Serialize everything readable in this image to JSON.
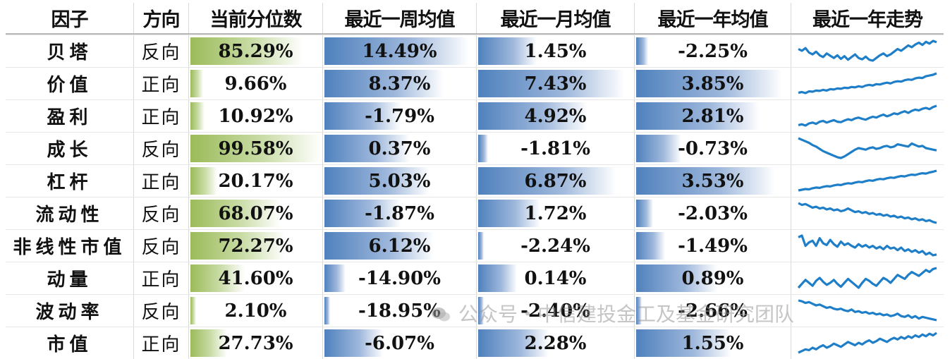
{
  "chart_data": {
    "type": "table",
    "headers": [
      "因子",
      "方向",
      "当前分位数",
      "最近一周均值",
      "最近一月均值",
      "最近一年均值",
      "最近一年走势"
    ],
    "rows": [
      {
        "factor": "贝塔",
        "direction": "反向",
        "percentile": "85.29%",
        "week": "14.49%",
        "month": "1.45%",
        "year": "-2.25%",
        "pct_value": 85.29,
        "week_value": 14.49,
        "month_value": 1.45,
        "year_value": -2.25,
        "trend": [
          70,
          66,
          72,
          62,
          58,
          64,
          56,
          52,
          60,
          55,
          50,
          56,
          48,
          54,
          46,
          52,
          58,
          50,
          47,
          53,
          46,
          44,
          50,
          56,
          60,
          54,
          58,
          64,
          70,
          66,
          72,
          78,
          74,
          80,
          84,
          79,
          86,
          82,
          88,
          85
        ]
      },
      {
        "factor": "价值",
        "direction": "正向",
        "percentile": "9.66%",
        "week": "8.37%",
        "month": "7.43%",
        "year": "3.85%",
        "pct_value": 9.66,
        "week_value": 8.37,
        "month_value": 7.43,
        "year_value": 3.85,
        "trend": [
          20,
          22,
          19,
          24,
          23,
          26,
          25,
          28,
          26,
          30,
          29,
          32,
          31,
          34,
          33,
          36,
          35,
          38,
          36,
          40,
          42,
          40,
          44,
          43,
          46,
          48,
          46,
          50,
          52,
          51,
          55,
          57,
          56,
          60,
          62,
          61,
          66,
          68,
          70,
          74
        ]
      },
      {
        "factor": "盈利",
        "direction": "正向",
        "percentile": "10.92%",
        "week": "-1.79%",
        "month": "4.92%",
        "year": "2.81%",
        "pct_value": 10.92,
        "week_value": -1.79,
        "month_value": 4.92,
        "year_value": 2.81,
        "trend": [
          22,
          24,
          21,
          26,
          28,
          25,
          30,
          32,
          28,
          31,
          34,
          30,
          29,
          33,
          36,
          34,
          38,
          40,
          37,
          35,
          39,
          42,
          40,
          44,
          47,
          43,
          46,
          50,
          48,
          52,
          55,
          51,
          56,
          59,
          57,
          61,
          63,
          60,
          65,
          68
        ]
      },
      {
        "factor": "成长",
        "direction": "反向",
        "percentile": "99.58%",
        "week": "0.37%",
        "month": "-1.81%",
        "year": "-0.73%",
        "pct_value": 99.58,
        "week_value": 0.37,
        "month_value": -1.81,
        "year_value": -0.73,
        "trend": [
          78,
          74,
          70,
          66,
          60,
          56,
          50,
          44,
          40,
          36,
          32,
          28,
          26,
          30,
          36,
          42,
          48,
          52,
          50,
          48,
          52,
          54,
          50,
          52,
          56,
          58,
          54,
          56,
          62,
          60,
          58,
          56,
          64,
          60,
          56,
          58,
          52,
          50,
          48,
          46
        ]
      },
      {
        "factor": "杠杆",
        "direction": "正向",
        "percentile": "20.17%",
        "week": "5.03%",
        "month": "6.87%",
        "year": "3.53%",
        "pct_value": 20.17,
        "week_value": 5.03,
        "month_value": 6.87,
        "year_value": 3.53,
        "trend": [
          20,
          22,
          24,
          23,
          26,
          28,
          27,
          30,
          32,
          31,
          34,
          36,
          35,
          38,
          40,
          39,
          42,
          44,
          43,
          46,
          48,
          47,
          50,
          52,
          51,
          54,
          56,
          55,
          58,
          60,
          59,
          62,
          64,
          63,
          66,
          68,
          67,
          70,
          72,
          75
        ]
      },
      {
        "factor": "流动性",
        "direction": "反向",
        "percentile": "68.07%",
        "week": "-1.87%",
        "month": "1.72%",
        "year": "-2.03%",
        "pct_value": 68.07,
        "week_value": -1.87,
        "month_value": 1.72,
        "year_value": -2.03,
        "trend": [
          76,
          72,
          74,
          70,
          66,
          68,
          64,
          66,
          62,
          64,
          60,
          62,
          58,
          60,
          64,
          60,
          56,
          58,
          54,
          56,
          52,
          54,
          50,
          52,
          48,
          50,
          46,
          48,
          44,
          46,
          42,
          44,
          40,
          42,
          38,
          40,
          36,
          38,
          34,
          32
        ]
      },
      {
        "factor": "非线性市值",
        "direction": "反向",
        "percentile": "72.27%",
        "week": "6.12%",
        "month": "-2.24%",
        "year": "-1.49%",
        "pct_value": 72.27,
        "week_value": 6.12,
        "month_value": -2.24,
        "year_value": -1.49,
        "trend": [
          70,
          74,
          50,
          58,
          62,
          50,
          68,
          56,
          52,
          64,
          54,
          48,
          60,
          52,
          56,
          50,
          46,
          54,
          48,
          52,
          46,
          50,
          44,
          48,
          42,
          50,
          44,
          46,
          40,
          46,
          38,
          42,
          36,
          40,
          34,
          38,
          30,
          34,
          28,
          30
        ]
      },
      {
        "factor": "动量",
        "direction": "正向",
        "percentile": "41.60%",
        "week": "-14.90%",
        "month": "0.14%",
        "year": "0.89%",
        "pct_value": 41.6,
        "week_value": -14.9,
        "month_value": 0.14,
        "year_value": 0.89,
        "trend": [
          30,
          38,
          46,
          40,
          34,
          44,
          50,
          42,
          36,
          40,
          46,
          38,
          32,
          40,
          48,
          42,
          36,
          30,
          40,
          48,
          44,
          38,
          34,
          42,
          50,
          46,
          40,
          48,
          56,
          52,
          48,
          56,
          62,
          58,
          54,
          60,
          66,
          62,
          68,
          70
        ]
      },
      {
        "factor": "波动率",
        "direction": "反向",
        "percentile": "2.10%",
        "week": "-18.95%",
        "month": "-2.40%",
        "year": "-2.66%",
        "pct_value": 2.1,
        "week_value": -18.95,
        "month_value": -2.4,
        "year_value": -2.66,
        "trend": [
          78,
          76,
          72,
          74,
          70,
          66,
          68,
          64,
          60,
          62,
          58,
          56,
          58,
          54,
          52,
          56,
          50,
          52,
          48,
          50,
          46,
          48,
          44,
          46,
          42,
          44,
          40,
          42,
          46,
          40,
          38,
          42,
          36,
          40,
          34,
          38,
          36,
          34,
          32,
          30
        ]
      },
      {
        "factor": "市值",
        "direction": "正向",
        "percentile": "27.73%",
        "week": "-6.07%",
        "month": "2.28%",
        "year": "1.55%",
        "pct_value": 27.73,
        "week_value": -6.07,
        "month_value": 2.28,
        "year_value": 1.55,
        "trend": [
          22,
          26,
          30,
          28,
          34,
          30,
          36,
          40,
          34,
          38,
          44,
          40,
          36,
          42,
          48,
          44,
          40,
          46,
          42,
          48,
          52,
          46,
          50,
          56,
          52,
          48,
          54,
          58,
          54,
          60,
          56,
          62,
          58,
          64,
          60,
          66,
          62,
          68,
          64,
          70
        ]
      }
    ]
  },
  "watermark": "公众号・中信建投金工及基金研究团队",
  "colors": {
    "green": "#9bbb59",
    "blue": "#4f81bd",
    "spark": "#1f7ec8"
  }
}
